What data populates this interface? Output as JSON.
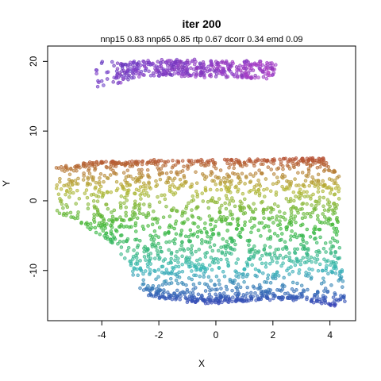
{
  "chart_data": {
    "type": "scatter",
    "title": "iter 200",
    "subtitle": "nnp15 0.83 nnp65 0.85 rtp 0.67 dcorr 0.34 emd 0.09",
    "xlabel": "X",
    "ylabel": "Y",
    "xlim": [
      -5.9,
      4.9
    ],
    "ylim": [
      -17.2,
      22.2
    ],
    "xticks": [
      -4,
      -2,
      0,
      2,
      4
    ],
    "yticks": [
      -10,
      0,
      10,
      20
    ],
    "xtick_labels": [
      "-4",
      "-2",
      "0",
      "2",
      "4"
    ],
    "ytick_labels": [
      "-10",
      "0",
      "10",
      "20"
    ],
    "grid": false,
    "legend": "none",
    "marker": "open-circle",
    "color_scale": "rainbow by y: blue (bottom) -> cyan -> green -> yellow -> orange-red (top of lower band); purple for upper band",
    "regions": [
      {
        "name": "upper band",
        "x_range": [
          -4.2,
          2.1
        ],
        "y_range": [
          16.0,
          20.3
        ],
        "color_range": [
          "#7733cc",
          "#b044c8"
        ],
        "approx_points": 420
      },
      {
        "name": "lower band",
        "x_range": [
          -5.6,
          4.6
        ],
        "y_range": [
          -15.5,
          6.2
        ],
        "color_range": [
          "#4040c0",
          "#c85a3c"
        ],
        "approx_points": 1800
      }
    ]
  }
}
